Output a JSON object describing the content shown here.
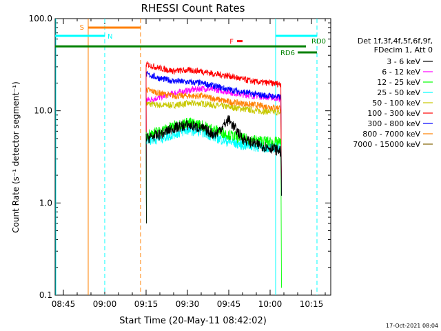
{
  "chart_data": {
    "type": "line",
    "title": "RHESSI Count Rates",
    "xlabel": "Start Time (20-May-11 08:42:02)",
    "ylabel": "Count Rate (s⁻¹ detector segment⁻¹)",
    "yscale": "log",
    "ylim": [
      0.1,
      100
    ],
    "xlim": [
      "08:42",
      "10:22"
    ],
    "x_tick_labels": [
      "08:45",
      "09:00",
      "09:15",
      "09:30",
      "09:45",
      "10:00",
      "10:15"
    ],
    "y_tick_labels": [
      "100.0",
      "10.0",
      "1.0",
      "0.1"
    ],
    "data_start": "09:15",
    "data_end": "10:04",
    "legend_header": [
      "Det 1f,3f,4f,5f,6f,9f,",
      "FDecim 1, Att 0"
    ],
    "legend_placement": "right",
    "series": [
      {
        "name": "3 - 6 keV",
        "color": "#000000",
        "x": [
          "09:15",
          "09:20",
          "09:25",
          "09:30",
          "09:35",
          "09:40",
          "09:45",
          "09:50",
          "09:55",
          "10:00",
          "10:04"
        ],
        "y": [
          5.0,
          5.5,
          6.5,
          7.0,
          6.5,
          5.5,
          8.0,
          5.0,
          4.3,
          4.0,
          3.6
        ]
      },
      {
        "name": "6 - 12 keV",
        "color": "#ff00ff",
        "x": [
          "09:15",
          "09:20",
          "09:25",
          "09:30",
          "09:35",
          "09:40",
          "09:45",
          "09:50",
          "09:55",
          "10:00",
          "10:04"
        ],
        "y": [
          13.0,
          14.0,
          15.5,
          16.5,
          17.5,
          17.0,
          16.0,
          15.0,
          14.5,
          14.0,
          13.5
        ]
      },
      {
        "name": "12 - 25 keV",
        "color": "#00ff00",
        "x": [
          "09:15",
          "09:20",
          "09:25",
          "09:30",
          "09:35",
          "09:40",
          "09:45",
          "09:50",
          "09:55",
          "10:00",
          "10:04"
        ],
        "y": [
          5.5,
          6.0,
          6.8,
          7.5,
          7.0,
          6.2,
          5.5,
          5.0,
          4.8,
          4.6,
          4.5
        ]
      },
      {
        "name": "25 - 50 keV",
        "color": "#00ffff",
        "x": [
          "09:15",
          "09:20",
          "09:25",
          "09:30",
          "09:35",
          "09:40",
          "09:45",
          "09:50",
          "09:55",
          "10:00",
          "10:04"
        ],
        "y": [
          4.8,
          5.0,
          5.6,
          6.2,
          6.0,
          5.2,
          4.6,
          4.3,
          4.1,
          4.0,
          4.0
        ]
      },
      {
        "name": "50 - 100 keV",
        "color": "#c8c800",
        "x": [
          "09:15",
          "09:20",
          "09:25",
          "09:30",
          "09:35",
          "09:40",
          "09:45",
          "09:50",
          "09:55",
          "10:00",
          "10:04"
        ],
        "y": [
          12.0,
          11.5,
          11.5,
          12.0,
          12.0,
          11.5,
          11.0,
          10.5,
          10.0,
          9.8,
          9.5
        ]
      },
      {
        "name": "100 - 300 keV",
        "color": "#ff0000",
        "x": [
          "09:15",
          "09:20",
          "09:25",
          "09:30",
          "09:35",
          "09:40",
          "09:45",
          "09:50",
          "09:55",
          "10:00",
          "10:04"
        ],
        "y": [
          32.0,
          29.0,
          27.0,
          27.5,
          27.0,
          25.0,
          24.0,
          22.0,
          20.5,
          20.0,
          19.5
        ]
      },
      {
        "name": "300 - 800 keV",
        "color": "#0000ff",
        "x": [
          "09:15",
          "09:20",
          "09:25",
          "09:30",
          "09:35",
          "09:40",
          "09:45",
          "09:50",
          "09:55",
          "10:00",
          "10:04"
        ],
        "y": [
          25.0,
          22.5,
          21.0,
          20.5,
          20.0,
          18.5,
          17.0,
          16.0,
          15.0,
          14.5,
          14.0
        ]
      },
      {
        "name": "800 - 7000 keV",
        "color": "#ff8000",
        "x": [
          "09:15",
          "09:20",
          "09:25",
          "09:30",
          "09:35",
          "09:40",
          "09:45",
          "09:50",
          "09:55",
          "10:00",
          "10:04"
        ],
        "y": [
          17.0,
          15.5,
          14.5,
          14.5,
          14.5,
          13.5,
          12.5,
          12.0,
          11.5,
          11.0,
          10.8
        ]
      },
      {
        "name": "7000 - 15000 keV",
        "color": "#806000",
        "x": [],
        "y": []
      }
    ],
    "flags": [
      {
        "label": "S",
        "color": "#ff8000",
        "start": "08:54",
        "end": "09:13",
        "level": 80
      },
      {
        "label": "N",
        "color": "#00ffff",
        "start": "08:42",
        "end": "09:00",
        "level": 65
      },
      {
        "label": "F",
        "color": "#ff0000",
        "start": "09:48",
        "end": "09:50",
        "level": 57
      },
      {
        "label": "RD0",
        "color": "#008000",
        "start": "08:42",
        "end": "10:13",
        "level": 50
      },
      {
        "label": "RD6",
        "color": "#008000",
        "start": "10:10",
        "end": "10:17",
        "level": 43
      },
      {
        "label": "",
        "color": "#00ffff",
        "start": "10:02",
        "end": "10:17",
        "level": 65
      }
    ],
    "vlines": [
      {
        "time": "08:54",
        "color": "#ff8000",
        "style": "solid"
      },
      {
        "time": "09:13",
        "color": "#ff8000",
        "style": "dashed"
      },
      {
        "time": "09:00",
        "color": "#00ffff",
        "style": "dashed"
      },
      {
        "time": "10:02",
        "color": "#00ffff",
        "style": "solid"
      },
      {
        "time": "10:17",
        "color": "#00ffff",
        "style": "dashed"
      },
      {
        "time": "08:42",
        "color": "#00ffff",
        "style": "solid"
      }
    ],
    "grid": false
  },
  "footer_timestamp": "17-Oct-2021 08:04"
}
